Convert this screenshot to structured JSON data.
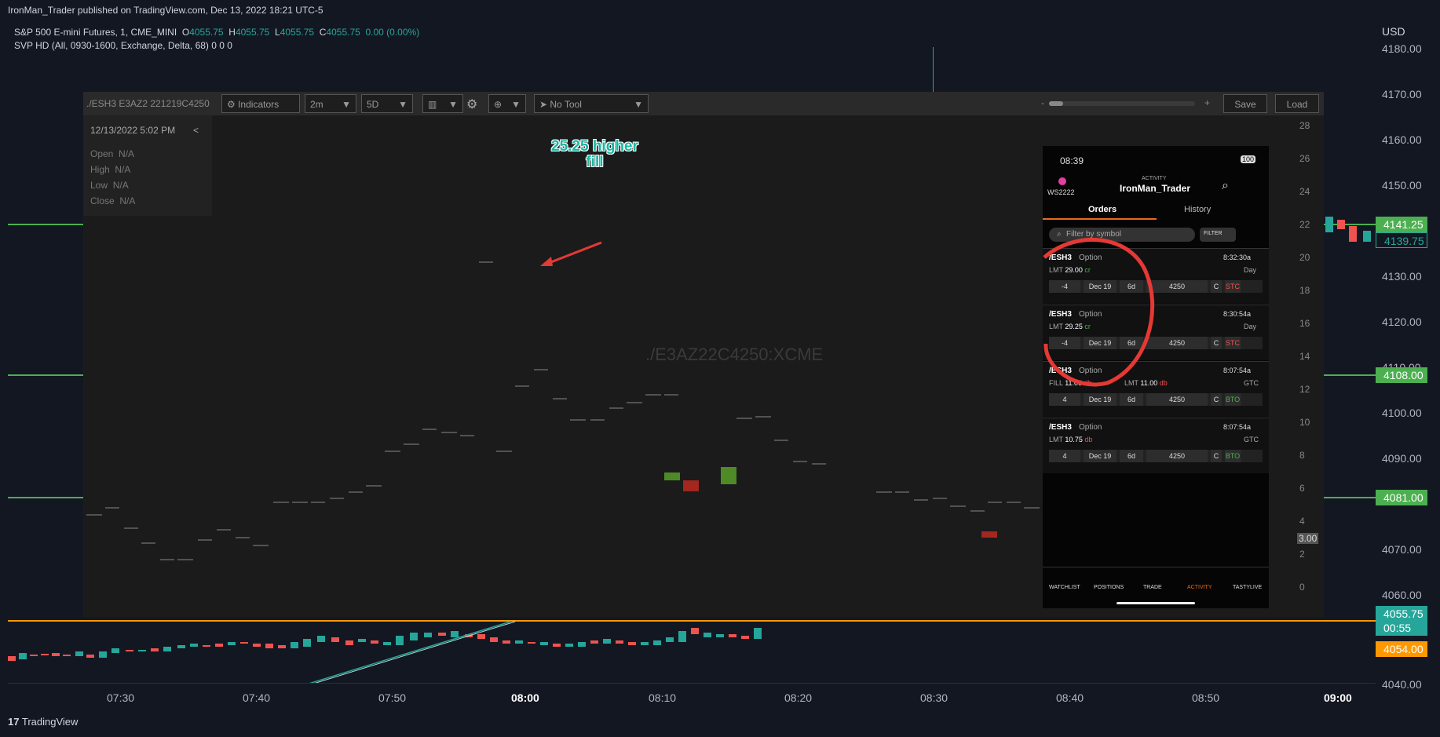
{
  "header": {
    "published": "IronMan_Trader published on TradingView.com, Dec 13, 2022 18:21 UTC-5",
    "symbol_name": "S&P 500 E-mini Futures, 1, CME_MINI",
    "o_label": "O",
    "o_value": "4055.75",
    "h_label": "H",
    "h_value": "4055.75",
    "l_label": "L",
    "l_value": "4055.75",
    "c_label": "C",
    "c_value": "4055.75",
    "change": "0.00 (0.00%)",
    "svp": "SVP HD (All, 0930-1600, Exchange, Delta, 68)  0  0  0"
  },
  "price_axis": {
    "currency": "USD",
    "labels": [
      "4180.00",
      "4170.00",
      "4160.00",
      "4150.00",
      "4130.00",
      "4120.00",
      "4110.00",
      "4100.00",
      "4090.00",
      "4070.00",
      "4060.00",
      "4040.00"
    ],
    "badges": [
      {
        "text": "4141.25",
        "color": "#4caf50"
      },
      {
        "text": "4139.75",
        "color": "#131722"
      },
      {
        "text": "4108.00",
        "color": "#4caf50"
      },
      {
        "text": "4081.00",
        "color": "#4caf50"
      },
      {
        "text": "4055.75",
        "color": "#26a69a"
      },
      {
        "text": "00:55",
        "color": "#26a69a"
      },
      {
        "text": "4054.00",
        "color": "#ff9800"
      }
    ]
  },
  "time_axis": {
    "labels": [
      "07:30",
      "07:40",
      "07:50",
      "08:00",
      "08:10",
      "08:20",
      "08:30",
      "08:40",
      "08:50",
      "09:00"
    ]
  },
  "footer": {
    "brand": "TradingView"
  },
  "embed": {
    "symbol": "./ESH3 E3AZ2 221219C4250",
    "indicators": "Indicators",
    "interval": "2m",
    "range": "5D",
    "tool": "No Tool",
    "zoom_minus": "-",
    "zoom_plus": "+",
    "save": "Save",
    "load": "Load",
    "datetime": "12/13/2022 5:02 PM",
    "collapse": "<",
    "ohlc": [
      {
        "label": "Open",
        "value": "N/A"
      },
      {
        "label": "High",
        "value": "N/A"
      },
      {
        "label": "Low",
        "value": "N/A"
      },
      {
        "label": "Close",
        "value": "N/A"
      }
    ],
    "watermark": "./E3AZ22C4250:XCME",
    "annotation_line1": "25.25 higher",
    "annotation_line2": "fill",
    "y_labels": [
      "28",
      "26",
      "24",
      "22",
      "20",
      "18",
      "16",
      "14",
      "12",
      "10",
      "8",
      "6",
      "4",
      "2",
      "0"
    ],
    "last_price": "3.00"
  },
  "phone": {
    "time": "08:39",
    "battery": "100",
    "account": "WS2222",
    "activity_label": "ACTIVITY",
    "user": "IronMan_Trader",
    "tab_orders": "Orders",
    "tab_history": "History",
    "filter_placeholder": "Filter by symbol",
    "filter_button": "FILTER",
    "orders": [
      {
        "symbol": "/ESH3",
        "type": "Option",
        "time": "8:32:30a",
        "lmt": "29.00",
        "lmt_suffix": "cr",
        "fill": "",
        "duration": "Day",
        "qty": "-4",
        "date": "Dec 19",
        "dte": "6d",
        "strike": "4250",
        "cp": "C",
        "action": "STC"
      },
      {
        "symbol": "/ESH3",
        "type": "Option",
        "time": "8:30:54a",
        "lmt": "29.25",
        "lmt_suffix": "cr",
        "fill": "",
        "duration": "Day",
        "qty": "-4",
        "date": "Dec 19",
        "dte": "6d",
        "strike": "4250",
        "cp": "C",
        "action": "STC"
      },
      {
        "symbol": "/ESH3",
        "type": "Option",
        "time": "8:07:54a",
        "lmt": "11.00",
        "lmt_suffix": "db",
        "fill": "11.00",
        "duration": "GTC",
        "qty": "4",
        "date": "Dec 19",
        "dte": "6d",
        "strike": "4250",
        "cp": "C",
        "action": "BTO"
      },
      {
        "symbol": "/ESH3",
        "type": "Option",
        "time": "8:07:54a",
        "lmt": "10.75",
        "lmt_suffix": "db",
        "fill": "",
        "duration": "GTC",
        "qty": "4",
        "date": "Dec 19",
        "dte": "6d",
        "strike": "4250",
        "cp": "C",
        "action": "BTO"
      }
    ],
    "nav": [
      "WATCHLIST",
      "POSITIONS",
      "TRADE",
      "ACTIVITY",
      "TASTYLIVE"
    ],
    "lmt_label": "LMT",
    "fill_label": "FILL"
  },
  "colors": {
    "accent_green": "#4caf50",
    "teal": "#26a69a",
    "orange": "#ff9800",
    "red": "#ef5350",
    "annotation": "#19b7a3"
  }
}
